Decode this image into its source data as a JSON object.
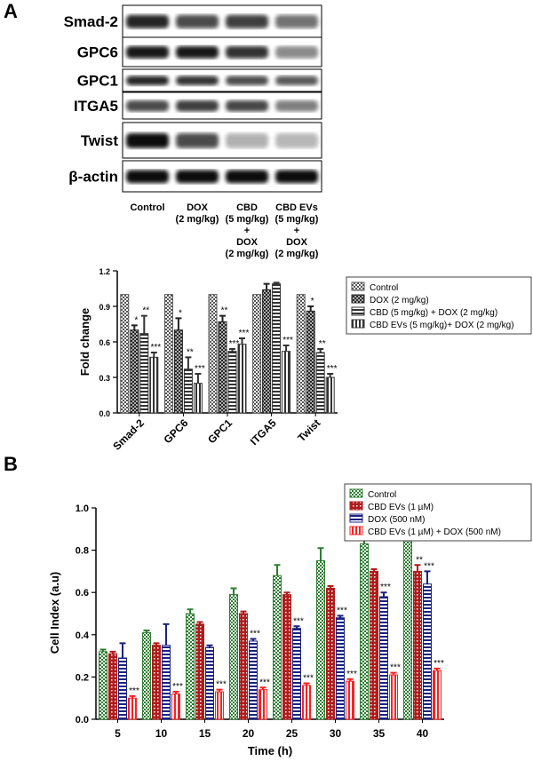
{
  "panel_labels": [
    "A",
    "B"
  ],
  "blot": {
    "rows": [
      "Smad-2",
      "GPC6",
      "GPC1",
      "ITGA5",
      "Twist",
      "β-actin"
    ],
    "columns": [
      [
        "Control"
      ],
      [
        "DOX",
        "(2 mg/kg)"
      ],
      [
        "CBD",
        "(5 mg/kg)",
        "+",
        "DOX",
        "(2 mg/kg)"
      ],
      [
        "CBD EVs",
        "(5 mg/kg)",
        "+",
        "DOX",
        "(2 mg/kg)"
      ]
    ]
  },
  "chart_data": [
    {
      "type": "bar",
      "y_label": "Fold change",
      "categories": [
        "Smad-2",
        "GPC6",
        "GPC1",
        "ITGA5",
        "Twist"
      ],
      "ylim": [
        0,
        1.2
      ],
      "yticks": [
        {
          "value": 0,
          "label": "0.0"
        },
        0.3,
        0.6,
        0.9,
        1.2
      ],
      "grid": false,
      "legend": "right",
      "series": [
        {
          "name": "Control",
          "color": "#555555",
          "pattern": "checker",
          "values": [
            1,
            1,
            1,
            1,
            1
          ],
          "errors": [
            0,
            0,
            0,
            0,
            0
          ],
          "annotations": [
            null,
            null,
            null,
            null,
            null
          ]
        },
        {
          "name": "DOX (2 mg/kg)",
          "color": "#222222",
          "pattern": "cross",
          "values": [
            0.7,
            0.7,
            0.77,
            1.04,
            0.86
          ],
          "errors": [
            0.04,
            0.1,
            0.05,
            0.05,
            0.04
          ],
          "annotations": [
            "*",
            "*",
            "**",
            null,
            "*"
          ]
        },
        {
          "name": "CBD (5 mg/kg) + DOX (2 mg/kg)",
          "color": "#333333",
          "pattern": "hstripe",
          "values": [
            0.67,
            0.37,
            0.52,
            1.09,
            0.51
          ],
          "errors": [
            0.15,
            0.1,
            0.02,
            0.01,
            0.03
          ],
          "annotations": [
            "**",
            "**",
            "***",
            null,
            "**"
          ]
        },
        {
          "name": "CBD EVs (5 mg/kg)+ DOX (2 mg/kg)",
          "color": "#333333",
          "pattern": "vstripe",
          "values": [
            0.47,
            0.25,
            0.58,
            0.52,
            0.3
          ],
          "errors": [
            0.04,
            0.08,
            0.05,
            0.05,
            0.03
          ],
          "annotations": [
            "***",
            "***",
            "***",
            "***",
            "***"
          ]
        }
      ]
    },
    {
      "type": "bar",
      "x_label": "Time (h)",
      "y_label": "Cell Index (a.u)",
      "categories": [
        "5",
        "10",
        "15",
        "20",
        "25",
        "30",
        "35",
        "40"
      ],
      "ylim": [
        0,
        1
      ],
      "yticks": [
        {
          "value": 0,
          "label": "0.0"
        },
        0.2,
        0.4,
        0.6,
        0.8,
        {
          "value": 1,
          "label": "1.0"
        }
      ],
      "grid": false,
      "legend": "top-right",
      "series": [
        {
          "name": "Control",
          "color": "#2e7d32",
          "pattern": "checker",
          "values": [
            0.32,
            0.41,
            0.5,
            0.59,
            0.68,
            0.75,
            0.83,
            0.92
          ],
          "errors": [
            0.01,
            0.01,
            0.02,
            0.03,
            0.05,
            0.06,
            0.07,
            0.08
          ],
          "annotations": [
            null,
            null,
            null,
            null,
            null,
            null,
            null,
            null
          ]
        },
        {
          "name": "CBD EVs (1 µM)",
          "color": "#b01c1c",
          "pattern": "dots",
          "values": [
            0.31,
            0.35,
            0.45,
            0.5,
            0.59,
            0.62,
            0.7,
            0.7
          ],
          "errors": [
            0.01,
            0.01,
            0.01,
            0.01,
            0.01,
            0.01,
            0.01,
            0.03
          ],
          "annotations": [
            null,
            null,
            null,
            null,
            null,
            null,
            null,
            "**"
          ]
        },
        {
          "name": "DOX (500 nM)",
          "color": "#1a237e",
          "pattern": "hstripe",
          "values": [
            0.29,
            0.35,
            0.34,
            0.37,
            0.43,
            0.48,
            0.58,
            0.64
          ],
          "errors": [
            0.07,
            0.1,
            0.01,
            0.01,
            0.01,
            0.01,
            0.02,
            0.06
          ],
          "annotations": [
            null,
            null,
            null,
            "***",
            "***",
            "***",
            "***",
            "***"
          ]
        },
        {
          "name": "CBD EVs (1 µM) + DOX (500 nM)",
          "color": "#ff2020",
          "pattern": "vstripe",
          "values": [
            0.1,
            0.12,
            0.13,
            0.14,
            0.16,
            0.18,
            0.21,
            0.23
          ],
          "errors": [
            0.01,
            0.01,
            0.01,
            0.01,
            0.01,
            0.01,
            0.01,
            0.01
          ],
          "annotations": [
            "***",
            "***",
            "***",
            "***",
            "***",
            "***",
            "***",
            "***"
          ]
        }
      ]
    }
  ]
}
